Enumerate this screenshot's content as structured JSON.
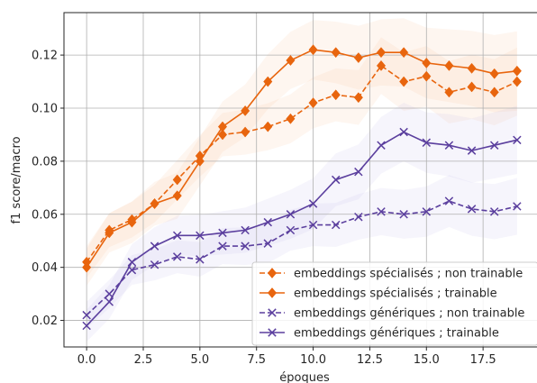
{
  "chart_data": {
    "type": "line",
    "title": "",
    "xlabel": "époques",
    "ylabel": "f1 score/macro",
    "xlim": [
      -1,
      20
    ],
    "ylim": [
      0.01,
      0.136
    ],
    "xticks": [
      0.0,
      2.5,
      5.0,
      7.5,
      10.0,
      12.5,
      15.0,
      17.5
    ],
    "xtick_labels": [
      "0.0",
      "2.5",
      "5.0",
      "7.5",
      "10.0",
      "12.5",
      "15.0",
      "17.5"
    ],
    "yticks": [
      0.02,
      0.04,
      0.06,
      0.08,
      0.1,
      0.12
    ],
    "ytick_labels": [
      "0.02",
      "0.04",
      "0.06",
      "0.08",
      "0.10",
      "0.12"
    ],
    "grid": true,
    "legend_position": "lower-right",
    "x": [
      0,
      1,
      2,
      3,
      4,
      5,
      6,
      7,
      8,
      9,
      10,
      11,
      12,
      13,
      14,
      15,
      16,
      17,
      18,
      19
    ],
    "series": [
      {
        "name": "embeddings spécialisés ; non trainable",
        "color": "#e8650e",
        "band_color": "#f6b98c",
        "line_style": "dashed",
        "marker": "diamond",
        "values": [
          0.042,
          0.054,
          0.058,
          0.064,
          0.073,
          0.082,
          0.09,
          0.091,
          0.093,
          0.096,
          0.102,
          0.105,
          0.104,
          0.116,
          0.11,
          0.112,
          0.106,
          0.108,
          0.106,
          0.11
        ]
      },
      {
        "name": "embeddings spécialisés ; trainable",
        "color": "#e8650e",
        "band_color": "#f6b98c",
        "line_style": "solid",
        "marker": "diamond",
        "values": [
          0.04,
          0.053,
          0.057,
          0.064,
          0.067,
          0.08,
          0.093,
          0.099,
          0.11,
          0.118,
          0.122,
          0.121,
          0.119,
          0.121,
          0.121,
          0.117,
          0.116,
          0.115,
          0.113,
          0.114
        ]
      },
      {
        "name": "embeddings génériques ; non trainable",
        "color": "#5b3f9e",
        "band_color": "#b8aee8",
        "line_style": "dashed",
        "marker": "x",
        "values": [
          0.022,
          0.03,
          0.039,
          0.041,
          0.044,
          0.043,
          0.048,
          0.048,
          0.049,
          0.054,
          0.056,
          0.056,
          0.059,
          0.061,
          0.06,
          0.061,
          0.065,
          0.062,
          0.061,
          0.063
        ]
      },
      {
        "name": "embeddings génériques ; trainable",
        "color": "#5b3f9e",
        "band_color": "#b8aee8",
        "line_style": "solid",
        "marker": "x",
        "values": [
          0.018,
          0.027,
          0.042,
          0.048,
          0.052,
          0.052,
          0.053,
          0.054,
          0.057,
          0.06,
          0.064,
          0.073,
          0.076,
          0.086,
          0.091,
          0.087,
          0.086,
          0.084,
          0.086,
          0.088
        ]
      }
    ]
  }
}
